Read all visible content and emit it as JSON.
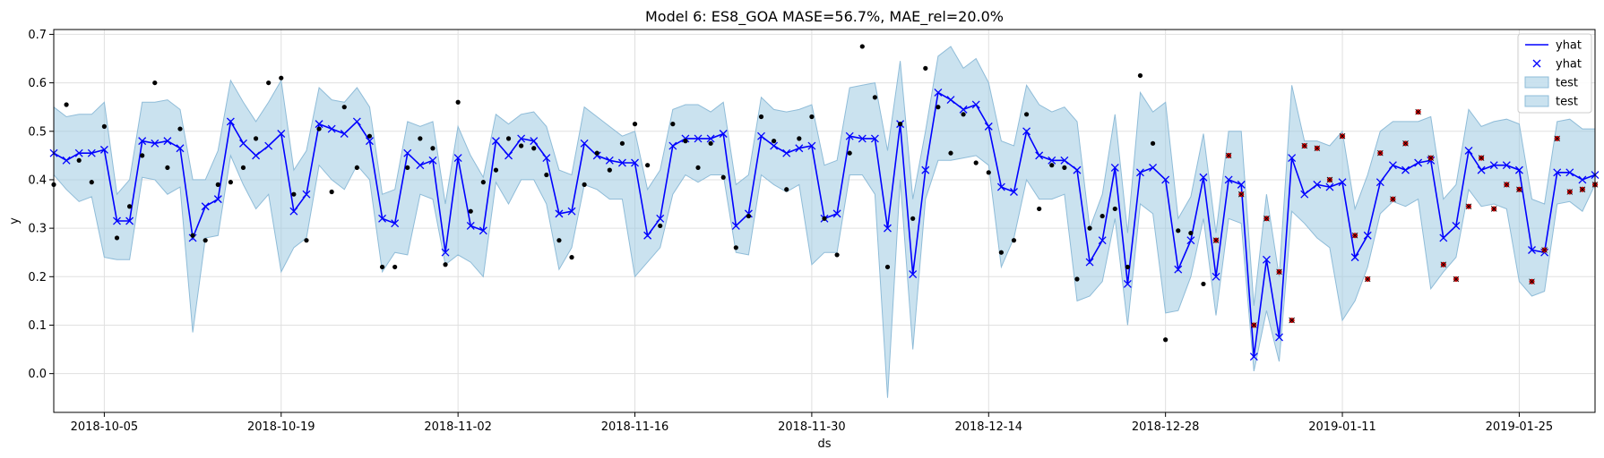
{
  "chart_data": {
    "type": "line",
    "title": "Model 6: ES8_GOA MASE=56.7%, MAE_rel=20.0%",
    "xlabel": "ds",
    "ylabel": "y",
    "x_range": [
      "2018-10-01",
      "2019-01-31"
    ],
    "ylim": [
      -0.08,
      0.71
    ],
    "x_ticks": [
      "2018-10-05",
      "2018-10-19",
      "2018-11-02",
      "2018-11-16",
      "2018-11-30",
      "2018-12-14",
      "2018-12-28",
      "2019-01-11",
      "2019-01-25"
    ],
    "y_ticks": [
      0.0,
      0.1,
      0.2,
      0.3,
      0.4,
      0.5,
      0.6,
      0.7
    ],
    "y_tick_labels": [
      "0.0",
      "0.1",
      "0.2",
      "0.3",
      "0.4",
      "0.5",
      "0.6",
      "0.7"
    ],
    "grid": true,
    "legend": {
      "placement": "top-right",
      "entries": [
        {
          "label": "yhat",
          "kind": "line"
        },
        {
          "label": "yhat",
          "kind": "marker-x"
        },
        {
          "label": "test",
          "kind": "band"
        },
        {
          "label": "test",
          "kind": "band"
        }
      ]
    },
    "colors": {
      "forecast": "#0000ff",
      "band": "#9ecae1",
      "band_edge": "#8fbcd8",
      "actual": "#000000",
      "test": "#cc0000",
      "grid": "#e0e0e0"
    },
    "dates": [
      "2018-10-01",
      "2018-10-02",
      "2018-10-03",
      "2018-10-04",
      "2018-10-05",
      "2018-10-06",
      "2018-10-07",
      "2018-10-08",
      "2018-10-09",
      "2018-10-10",
      "2018-10-11",
      "2018-10-12",
      "2018-10-13",
      "2018-10-14",
      "2018-10-15",
      "2018-10-16",
      "2018-10-17",
      "2018-10-18",
      "2018-10-19",
      "2018-10-20",
      "2018-10-21",
      "2018-10-22",
      "2018-10-23",
      "2018-10-24",
      "2018-10-25",
      "2018-10-26",
      "2018-10-27",
      "2018-10-28",
      "2018-10-29",
      "2018-10-30",
      "2018-10-31",
      "2018-11-01",
      "2018-11-02",
      "2018-11-03",
      "2018-11-04",
      "2018-11-05",
      "2018-11-06",
      "2018-11-07",
      "2018-11-08",
      "2018-11-09",
      "2018-11-10",
      "2018-11-11",
      "2018-11-12",
      "2018-11-13",
      "2018-11-14",
      "2018-11-15",
      "2018-11-16",
      "2018-11-17",
      "2018-11-18",
      "2018-11-19",
      "2018-11-20",
      "2018-11-21",
      "2018-11-22",
      "2018-11-23",
      "2018-11-24",
      "2018-11-25",
      "2018-11-26",
      "2018-11-27",
      "2018-11-28",
      "2018-11-29",
      "2018-11-30",
      "2018-12-01",
      "2018-12-02",
      "2018-12-03",
      "2018-12-04",
      "2018-12-05",
      "2018-12-06",
      "2018-12-07",
      "2018-12-08",
      "2018-12-09",
      "2018-12-10",
      "2018-12-11",
      "2018-12-12",
      "2018-12-13",
      "2018-12-14",
      "2018-12-15",
      "2018-12-16",
      "2018-12-17",
      "2018-12-18",
      "2018-12-19",
      "2018-12-20",
      "2018-12-21",
      "2018-12-22",
      "2018-12-23",
      "2018-12-24",
      "2018-12-25",
      "2018-12-26",
      "2018-12-27",
      "2018-12-28",
      "2018-12-29",
      "2018-12-30",
      "2018-12-31",
      "2019-01-01",
      "2019-01-02",
      "2019-01-03",
      "2019-01-04",
      "2019-01-05",
      "2019-01-06",
      "2019-01-07",
      "2019-01-08",
      "2019-01-09",
      "2019-01-10",
      "2019-01-11",
      "2019-01-12",
      "2019-01-13",
      "2019-01-14",
      "2019-01-15",
      "2019-01-16",
      "2019-01-17",
      "2019-01-18",
      "2019-01-19",
      "2019-01-20",
      "2019-01-21",
      "2019-01-22",
      "2019-01-23",
      "2019-01-24",
      "2019-01-25",
      "2019-01-26",
      "2019-01-27",
      "2019-01-28",
      "2019-01-29",
      "2019-01-30",
      "2019-01-31"
    ],
    "yhat": [
      0.455,
      0.44,
      0.455,
      0.455,
      0.462,
      0.315,
      0.315,
      0.48,
      0.475,
      0.48,
      0.465,
      0.28,
      0.345,
      0.36,
      0.52,
      0.475,
      0.45,
      0.47,
      0.495,
      0.335,
      0.37,
      0.515,
      0.505,
      0.495,
      0.52,
      0.48,
      0.32,
      0.31,
      0.455,
      0.43,
      0.44,
      0.25,
      0.445,
      0.305,
      0.295,
      0.48,
      0.45,
      0.485,
      0.48,
      0.445,
      0.33,
      0.335,
      0.475,
      0.45,
      0.44,
      0.435,
      0.435,
      0.285,
      0.32,
      0.47,
      0.485,
      0.485,
      0.485,
      0.495,
      0.305,
      0.33,
      0.49,
      0.47,
      0.455,
      0.465,
      0.47,
      0.32,
      0.33,
      0.49,
      0.485,
      0.485,
      0.3,
      0.515,
      0.205,
      0.42,
      0.58,
      0.565,
      0.545,
      0.555,
      0.51,
      0.385,
      0.375,
      0.5,
      0.45,
      0.44,
      0.44,
      0.42,
      0.23,
      0.275,
      0.425,
      0.185,
      0.415,
      0.425,
      0.4,
      0.215,
      0.275,
      0.405,
      0.2,
      0.4,
      0.39,
      0.035,
      0.235,
      0.075,
      0.445,
      0.37,
      0.39,
      0.385,
      0.395,
      0.24,
      0.285,
      0.395,
      0.43,
      0.42,
      0.435,
      0.44,
      0.28,
      0.305,
      0.46,
      0.42,
      0.43,
      0.43,
      0.42,
      0.255,
      0.25,
      0.415,
      0.415,
      0.4,
      0.41
    ],
    "band_upper": [
      0.55,
      0.53,
      0.535,
      0.535,
      0.56,
      0.37,
      0.4,
      0.56,
      0.56,
      0.565,
      0.545,
      0.4,
      0.4,
      0.46,
      0.605,
      0.56,
      0.52,
      0.56,
      0.605,
      0.42,
      0.46,
      0.59,
      0.565,
      0.56,
      0.59,
      0.55,
      0.37,
      0.38,
      0.52,
      0.51,
      0.52,
      0.35,
      0.51,
      0.45,
      0.405,
      0.535,
      0.515,
      0.535,
      0.54,
      0.51,
      0.42,
      0.41,
      0.55,
      0.53,
      0.51,
      0.49,
      0.5,
      0.38,
      0.42,
      0.545,
      0.555,
      0.555,
      0.54,
      0.56,
      0.39,
      0.41,
      0.57,
      0.545,
      0.54,
      0.545,
      0.555,
      0.43,
      0.44,
      0.59,
      0.595,
      0.6,
      0.46,
      0.645,
      0.36,
      0.5,
      0.655,
      0.675,
      0.63,
      0.65,
      0.6,
      0.48,
      0.47,
      0.595,
      0.555,
      0.54,
      0.55,
      0.52,
      0.3,
      0.37,
      0.535,
      0.29,
      0.58,
      0.54,
      0.56,
      0.32,
      0.365,
      0.495,
      0.29,
      0.5,
      0.5,
      0.14,
      0.37,
      0.2,
      0.595,
      0.48,
      0.48,
      0.47,
      0.5,
      0.34,
      0.41,
      0.5,
      0.52,
      0.52,
      0.52,
      0.53,
      0.36,
      0.39,
      0.545,
      0.51,
      0.52,
      0.525,
      0.515,
      0.36,
      0.35,
      0.52,
      0.525,
      0.505,
      0.505
    ],
    "band_lower": [
      0.41,
      0.38,
      0.355,
      0.365,
      0.24,
      0.235,
      0.235,
      0.405,
      0.4,
      0.37,
      0.385,
      0.085,
      0.28,
      0.285,
      0.45,
      0.39,
      0.34,
      0.37,
      0.21,
      0.26,
      0.28,
      0.43,
      0.4,
      0.38,
      0.43,
      0.4,
      0.21,
      0.25,
      0.245,
      0.37,
      0.36,
      0.225,
      0.245,
      0.23,
      0.2,
      0.395,
      0.35,
      0.4,
      0.4,
      0.35,
      0.215,
      0.26,
      0.39,
      0.38,
      0.36,
      0.36,
      0.2,
      0.23,
      0.26,
      0.37,
      0.41,
      0.395,
      0.41,
      0.41,
      0.25,
      0.245,
      0.41,
      0.39,
      0.375,
      0.39,
      0.225,
      0.25,
      0.25,
      0.41,
      0.41,
      0.37,
      -0.05,
      0.4,
      0.05,
      0.36,
      0.44,
      0.44,
      0.445,
      0.45,
      0.43,
      0.22,
      0.28,
      0.4,
      0.36,
      0.36,
      0.37,
      0.15,
      0.16,
      0.19,
      0.32,
      0.1,
      0.35,
      0.33,
      0.125,
      0.13,
      0.2,
      0.32,
      0.12,
      0.32,
      0.31,
      0.005,
      0.13,
      0.025,
      0.335,
      0.31,
      0.28,
      0.26,
      0.11,
      0.15,
      0.22,
      0.33,
      0.355,
      0.345,
      0.36,
      0.175,
      0.21,
      0.24,
      0.38,
      0.345,
      0.35,
      0.34,
      0.19,
      0.16,
      0.17,
      0.35,
      0.355,
      0.335,
      0.39
    ],
    "actual_train": [
      {
        "x": "2018-10-01",
        "y": 0.39
      },
      {
        "x": "2018-10-02",
        "y": 0.555
      },
      {
        "x": "2018-10-03",
        "y": 0.44
      },
      {
        "x": "2018-10-04",
        "y": 0.395
      },
      {
        "x": "2018-10-05",
        "y": 0.51
      },
      {
        "x": "2018-10-06",
        "y": 0.28
      },
      {
        "x": "2018-10-07",
        "y": 0.345
      },
      {
        "x": "2018-10-08",
        "y": 0.45
      },
      {
        "x": "2018-10-09",
        "y": 0.6
      },
      {
        "x": "2018-10-10",
        "y": 0.425
      },
      {
        "x": "2018-10-11",
        "y": 0.505
      },
      {
        "x": "2018-10-12",
        "y": 0.285
      },
      {
        "x": "2018-10-13",
        "y": 0.275
      },
      {
        "x": "2018-10-14",
        "y": 0.39
      },
      {
        "x": "2018-10-15",
        "y": 0.395
      },
      {
        "x": "2018-10-16",
        "y": 0.425
      },
      {
        "x": "2018-10-17",
        "y": 0.485
      },
      {
        "x": "2018-10-18",
        "y": 0.6
      },
      {
        "x": "2018-10-19",
        "y": 0.61
      },
      {
        "x": "2018-10-20",
        "y": 0.37
      },
      {
        "x": "2018-10-21",
        "y": 0.275
      },
      {
        "x": "2018-10-22",
        "y": 0.505
      },
      {
        "x": "2018-10-23",
        "y": 0.375
      },
      {
        "x": "2018-10-24",
        "y": 0.55
      },
      {
        "x": "2018-10-25",
        "y": 0.425
      },
      {
        "x": "2018-10-26",
        "y": 0.49
      },
      {
        "x": "2018-10-27",
        "y": 0.22
      },
      {
        "x": "2018-10-28",
        "y": 0.22
      },
      {
        "x": "2018-10-29",
        "y": 0.425
      },
      {
        "x": "2018-10-30",
        "y": 0.485
      },
      {
        "x": "2018-10-31",
        "y": 0.465
      },
      {
        "x": "2018-11-01",
        "y": 0.225
      },
      {
        "x": "2018-11-02",
        "y": 0.56
      },
      {
        "x": "2018-11-03",
        "y": 0.335
      },
      {
        "x": "2018-11-04",
        "y": 0.395
      },
      {
        "x": "2018-11-05",
        "y": 0.42
      },
      {
        "x": "2018-11-06",
        "y": 0.485
      },
      {
        "x": "2018-11-07",
        "y": 0.47
      },
      {
        "x": "2018-11-08",
        "y": 0.465
      },
      {
        "x": "2018-11-09",
        "y": 0.41
      },
      {
        "x": "2018-11-10",
        "y": 0.275
      },
      {
        "x": "2018-11-11",
        "y": 0.24
      },
      {
        "x": "2018-11-12",
        "y": 0.39
      },
      {
        "x": "2018-11-13",
        "y": 0.455
      },
      {
        "x": "2018-11-14",
        "y": 0.42
      },
      {
        "x": "2018-11-15",
        "y": 0.475
      },
      {
        "x": "2018-11-16",
        "y": 0.515
      },
      {
        "x": "2018-11-17",
        "y": 0.43
      },
      {
        "x": "2018-11-18",
        "y": 0.305
      },
      {
        "x": "2018-11-19",
        "y": 0.515
      },
      {
        "x": "2018-11-20",
        "y": 0.48
      },
      {
        "x": "2018-11-21",
        "y": 0.425
      },
      {
        "x": "2018-11-22",
        "y": 0.475
      },
      {
        "x": "2018-11-23",
        "y": 0.405
      },
      {
        "x": "2018-11-24",
        "y": 0.26
      },
      {
        "x": "2018-11-25",
        "y": 0.325
      },
      {
        "x": "2018-11-26",
        "y": 0.53
      },
      {
        "x": "2018-11-27",
        "y": 0.48
      },
      {
        "x": "2018-11-28",
        "y": 0.38
      },
      {
        "x": "2018-11-29",
        "y": 0.485
      },
      {
        "x": "2018-11-30",
        "y": 0.53
      },
      {
        "x": "2018-12-01",
        "y": 0.32
      },
      {
        "x": "2018-12-02",
        "y": 0.245
      },
      {
        "x": "2018-12-03",
        "y": 0.455
      },
      {
        "x": "2018-12-04",
        "y": 0.675
      },
      {
        "x": "2018-12-05",
        "y": 0.57
      },
      {
        "x": "2018-12-06",
        "y": 0.22
      },
      {
        "x": "2018-12-07",
        "y": 0.515
      },
      {
        "x": "2018-12-08",
        "y": 0.32
      },
      {
        "x": "2018-12-09",
        "y": 0.63
      },
      {
        "x": "2018-12-10",
        "y": 0.55
      },
      {
        "x": "2018-12-11",
        "y": 0.455
      },
      {
        "x": "2018-12-12",
        "y": 0.535
      },
      {
        "x": "2018-12-13",
        "y": 0.435
      },
      {
        "x": "2018-12-14",
        "y": 0.415
      },
      {
        "x": "2018-12-15",
        "y": 0.25
      },
      {
        "x": "2018-12-16",
        "y": 0.275
      },
      {
        "x": "2018-12-17",
        "y": 0.535
      },
      {
        "x": "2018-12-18",
        "y": 0.34
      },
      {
        "x": "2018-12-19",
        "y": 0.43
      },
      {
        "x": "2018-12-20",
        "y": 0.425
      },
      {
        "x": "2018-12-21",
        "y": 0.195
      },
      {
        "x": "2018-12-22",
        "y": 0.3
      },
      {
        "x": "2018-12-23",
        "y": 0.325
      },
      {
        "x": "2018-12-24",
        "y": 0.34
      },
      {
        "x": "2018-12-25",
        "y": 0.22
      },
      {
        "x": "2018-12-26",
        "y": 0.615
      },
      {
        "x": "2018-12-27",
        "y": 0.475
      },
      {
        "x": "2018-12-28",
        "y": 0.07
      },
      {
        "x": "2018-12-29",
        "y": 0.295
      },
      {
        "x": "2018-12-30",
        "y": 0.29
      },
      {
        "x": "2018-12-31",
        "y": 0.185
      }
    ],
    "actual_test": [
      {
        "x": "2019-01-01",
        "y": 0.275
      },
      {
        "x": "2019-01-02",
        "y": 0.45
      },
      {
        "x": "2019-01-03",
        "y": 0.37
      },
      {
        "x": "2019-01-04",
        "y": 0.1
      },
      {
        "x": "2019-01-05",
        "y": 0.32
      },
      {
        "x": "2019-01-06",
        "y": 0.21
      },
      {
        "x": "2019-01-07",
        "y": 0.11
      },
      {
        "x": "2019-01-08",
        "y": 0.47
      },
      {
        "x": "2019-01-09",
        "y": 0.465
      },
      {
        "x": "2019-01-10",
        "y": 0.4
      },
      {
        "x": "2019-01-11",
        "y": 0.49
      },
      {
        "x": "2019-01-12",
        "y": 0.285
      },
      {
        "x": "2019-01-13",
        "y": 0.195
      },
      {
        "x": "2019-01-14",
        "y": 0.455
      },
      {
        "x": "2019-01-15",
        "y": 0.36
      },
      {
        "x": "2019-01-16",
        "y": 0.475
      },
      {
        "x": "2019-01-17",
        "y": 0.54
      },
      {
        "x": "2019-01-18",
        "y": 0.445
      },
      {
        "x": "2019-01-19",
        "y": 0.225
      },
      {
        "x": "2019-01-20",
        "y": 0.195
      },
      {
        "x": "2019-01-21",
        "y": 0.345
      },
      {
        "x": "2019-01-22",
        "y": 0.445
      },
      {
        "x": "2019-01-23",
        "y": 0.34
      },
      {
        "x": "2019-01-24",
        "y": 0.39
      },
      {
        "x": "2019-01-25",
        "y": 0.38
      },
      {
        "x": "2019-01-26",
        "y": 0.19
      },
      {
        "x": "2019-01-27",
        "y": 0.255
      },
      {
        "x": "2019-01-28",
        "y": 0.485
      },
      {
        "x": "2019-01-29",
        "y": 0.375
      },
      {
        "x": "2019-01-30",
        "y": 0.38
      },
      {
        "x": "2019-01-31",
        "y": 0.39
      }
    ]
  }
}
